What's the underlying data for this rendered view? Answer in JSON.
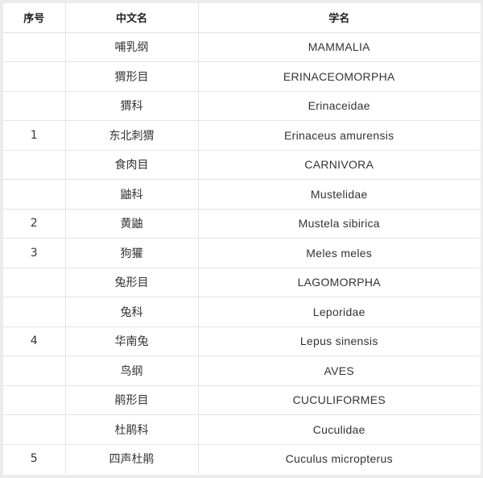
{
  "headers": [
    "序号",
    "中文名",
    "学名"
  ],
  "rows": [
    {
      "no": "",
      "cn": "哺乳纲",
      "sci": "MAMMALIA"
    },
    {
      "no": "",
      "cn": "猬形目",
      "sci": "ERINACEOMORPHA"
    },
    {
      "no": "",
      "cn": "猬科",
      "sci": "Erinaceidae"
    },
    {
      "no": "1",
      "cn": "东北刺猬",
      "sci": "Erinaceus amurensis"
    },
    {
      "no": "",
      "cn": "食肉目",
      "sci": "CARNIVORA"
    },
    {
      "no": "",
      "cn": "鼬科",
      "sci": "Mustelidae"
    },
    {
      "no": "2",
      "cn": "黄鼬",
      "sci": "Mustela sibirica"
    },
    {
      "no": "3",
      "cn": "狗獾",
      "sci": "Meles meles"
    },
    {
      "no": "",
      "cn": "兔形目",
      "sci": "LAGOMORPHA"
    },
    {
      "no": "",
      "cn": "兔科",
      "sci": "Leporidae"
    },
    {
      "no": "4",
      "cn": "华南兔",
      "sci": "Lepus sinensis"
    },
    {
      "no": "",
      "cn": "鸟纲",
      "sci": "AVES"
    },
    {
      "no": "",
      "cn": "鹃形目",
      "sci": "CUCULIFORMES"
    },
    {
      "no": "",
      "cn": "杜鹃科",
      "sci": "Cuculidae"
    },
    {
      "no": "5",
      "cn": "四声杜鹃",
      "sci": "Cuculus micropterus"
    }
  ]
}
